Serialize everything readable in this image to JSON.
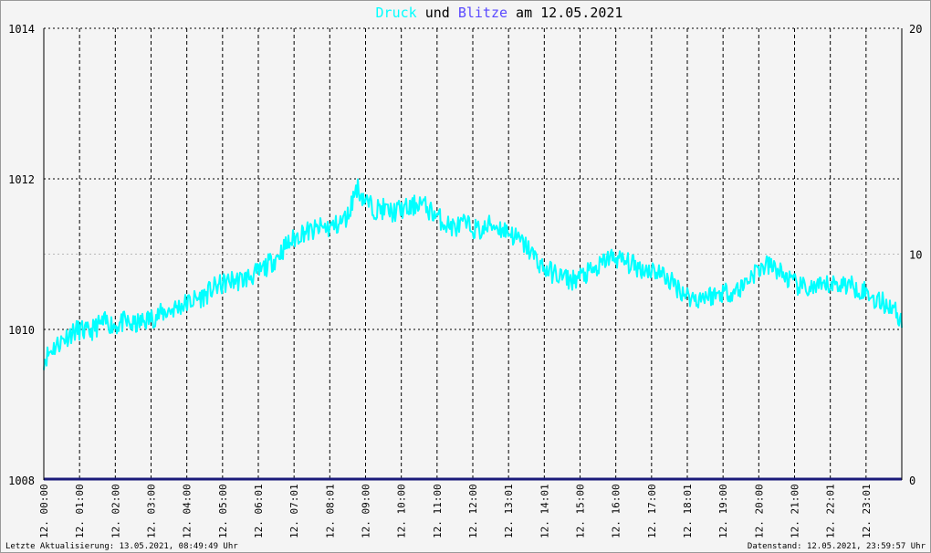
{
  "title": {
    "part1": "Druck",
    "part2": " und ",
    "part3": "Blitze",
    "part4": " am 12.05.2021"
  },
  "colors": {
    "pressure": "#00ffff",
    "lightning": "#5a4aff",
    "baseline": "#1a1a7a",
    "grid": "#000000",
    "title_text": "#000000"
  },
  "footer": {
    "left": "Letzte Aktualisierung: 13.05.2021, 08:49:49 Uhr",
    "right": "Datenstand: 12.05.2021, 23:59:57 Uhr"
  },
  "chart_data": {
    "type": "line",
    "title": "Druck und Blitze am 12.05.2021",
    "y_left": {
      "range": [
        1008,
        1014
      ],
      "ticks": [
        "1008",
        "1010",
        "1012",
        "1014"
      ]
    },
    "y_right": {
      "range": [
        0,
        20
      ],
      "ticks": [
        "0",
        "10",
        "20"
      ]
    },
    "x_range_hours": [
      0,
      24
    ],
    "x_ticks": [
      "12. 00:00",
      "12. 01:00",
      "12. 02:00",
      "12. 03:00",
      "12. 04:00",
      "12. 05:00",
      "12. 06:01",
      "12. 07:01",
      "12. 08:01",
      "12. 09:00",
      "12. 10:00",
      "12. 11:00",
      "12. 12:00",
      "12. 13:01",
      "12. 14:01",
      "12. 15:00",
      "12. 16:00",
      "12. 17:00",
      "12. 18:01",
      "12. 19:00",
      "12. 20:00",
      "12. 21:00",
      "12. 22:01",
      "12. 23:01"
    ],
    "grid": true,
    "series": [
      {
        "name": "Druck",
        "axis": "left",
        "color": "#00ffff",
        "x": [
          0,
          0.25,
          0.5,
          0.75,
          1.0,
          1.25,
          1.5,
          1.75,
          2.0,
          2.25,
          2.5,
          2.75,
          3.0,
          3.25,
          3.5,
          3.75,
          4.0,
          4.25,
          4.5,
          4.75,
          5.0,
          5.25,
          5.5,
          5.75,
          6.0,
          6.25,
          6.5,
          6.75,
          7.0,
          7.25,
          7.5,
          7.75,
          8.0,
          8.25,
          8.5,
          8.75,
          9.0,
          9.25,
          9.5,
          9.75,
          10.0,
          10.25,
          10.5,
          10.75,
          11.0,
          11.25,
          11.5,
          11.75,
          12.0,
          12.25,
          12.5,
          12.75,
          13.0,
          13.25,
          13.5,
          13.75,
          14.0,
          14.25,
          14.5,
          14.75,
          15.0,
          15.25,
          15.5,
          15.75,
          16.0,
          16.25,
          16.5,
          16.75,
          17.0,
          17.25,
          17.5,
          17.75,
          18.0,
          18.25,
          18.5,
          18.75,
          19.0,
          19.25,
          19.5,
          19.75,
          20.0,
          20.25,
          20.5,
          20.75,
          21.0,
          21.25,
          21.5,
          21.75,
          22.0,
          22.25,
          22.5,
          22.75,
          23.0,
          23.25,
          23.5,
          23.75,
          24.0
        ],
        "values": [
          1009.6,
          1009.75,
          1009.85,
          1009.95,
          1010.0,
          1009.95,
          1010.05,
          1010.1,
          1010.05,
          1010.1,
          1010.05,
          1010.1,
          1010.15,
          1010.2,
          1010.25,
          1010.3,
          1010.35,
          1010.4,
          1010.45,
          1010.55,
          1010.6,
          1010.65,
          1010.65,
          1010.7,
          1010.75,
          1010.85,
          1010.95,
          1011.1,
          1011.2,
          1011.3,
          1011.3,
          1011.35,
          1011.35,
          1011.4,
          1011.5,
          1011.9,
          1011.7,
          1011.6,
          1011.6,
          1011.55,
          1011.6,
          1011.6,
          1011.7,
          1011.6,
          1011.5,
          1011.4,
          1011.35,
          1011.4,
          1011.35,
          1011.3,
          1011.4,
          1011.35,
          1011.3,
          1011.2,
          1011.1,
          1010.95,
          1010.8,
          1010.75,
          1010.7,
          1010.65,
          1010.7,
          1010.75,
          1010.8,
          1010.95,
          1010.95,
          1010.9,
          1010.85,
          1010.8,
          1010.8,
          1010.75,
          1010.65,
          1010.55,
          1010.45,
          1010.4,
          1010.45,
          1010.45,
          1010.5,
          1010.5,
          1010.55,
          1010.7,
          1010.8,
          1010.85,
          1010.8,
          1010.7,
          1010.6,
          1010.55,
          1010.55,
          1010.55,
          1010.6,
          1010.6,
          1010.6,
          1010.55,
          1010.5,
          1010.4,
          1010.35,
          1010.3,
          1010.1
        ]
      },
      {
        "name": "Blitze",
        "axis": "right",
        "color": "#1a1a7a",
        "x": [
          0,
          24
        ],
        "values": [
          0,
          0
        ]
      }
    ]
  }
}
